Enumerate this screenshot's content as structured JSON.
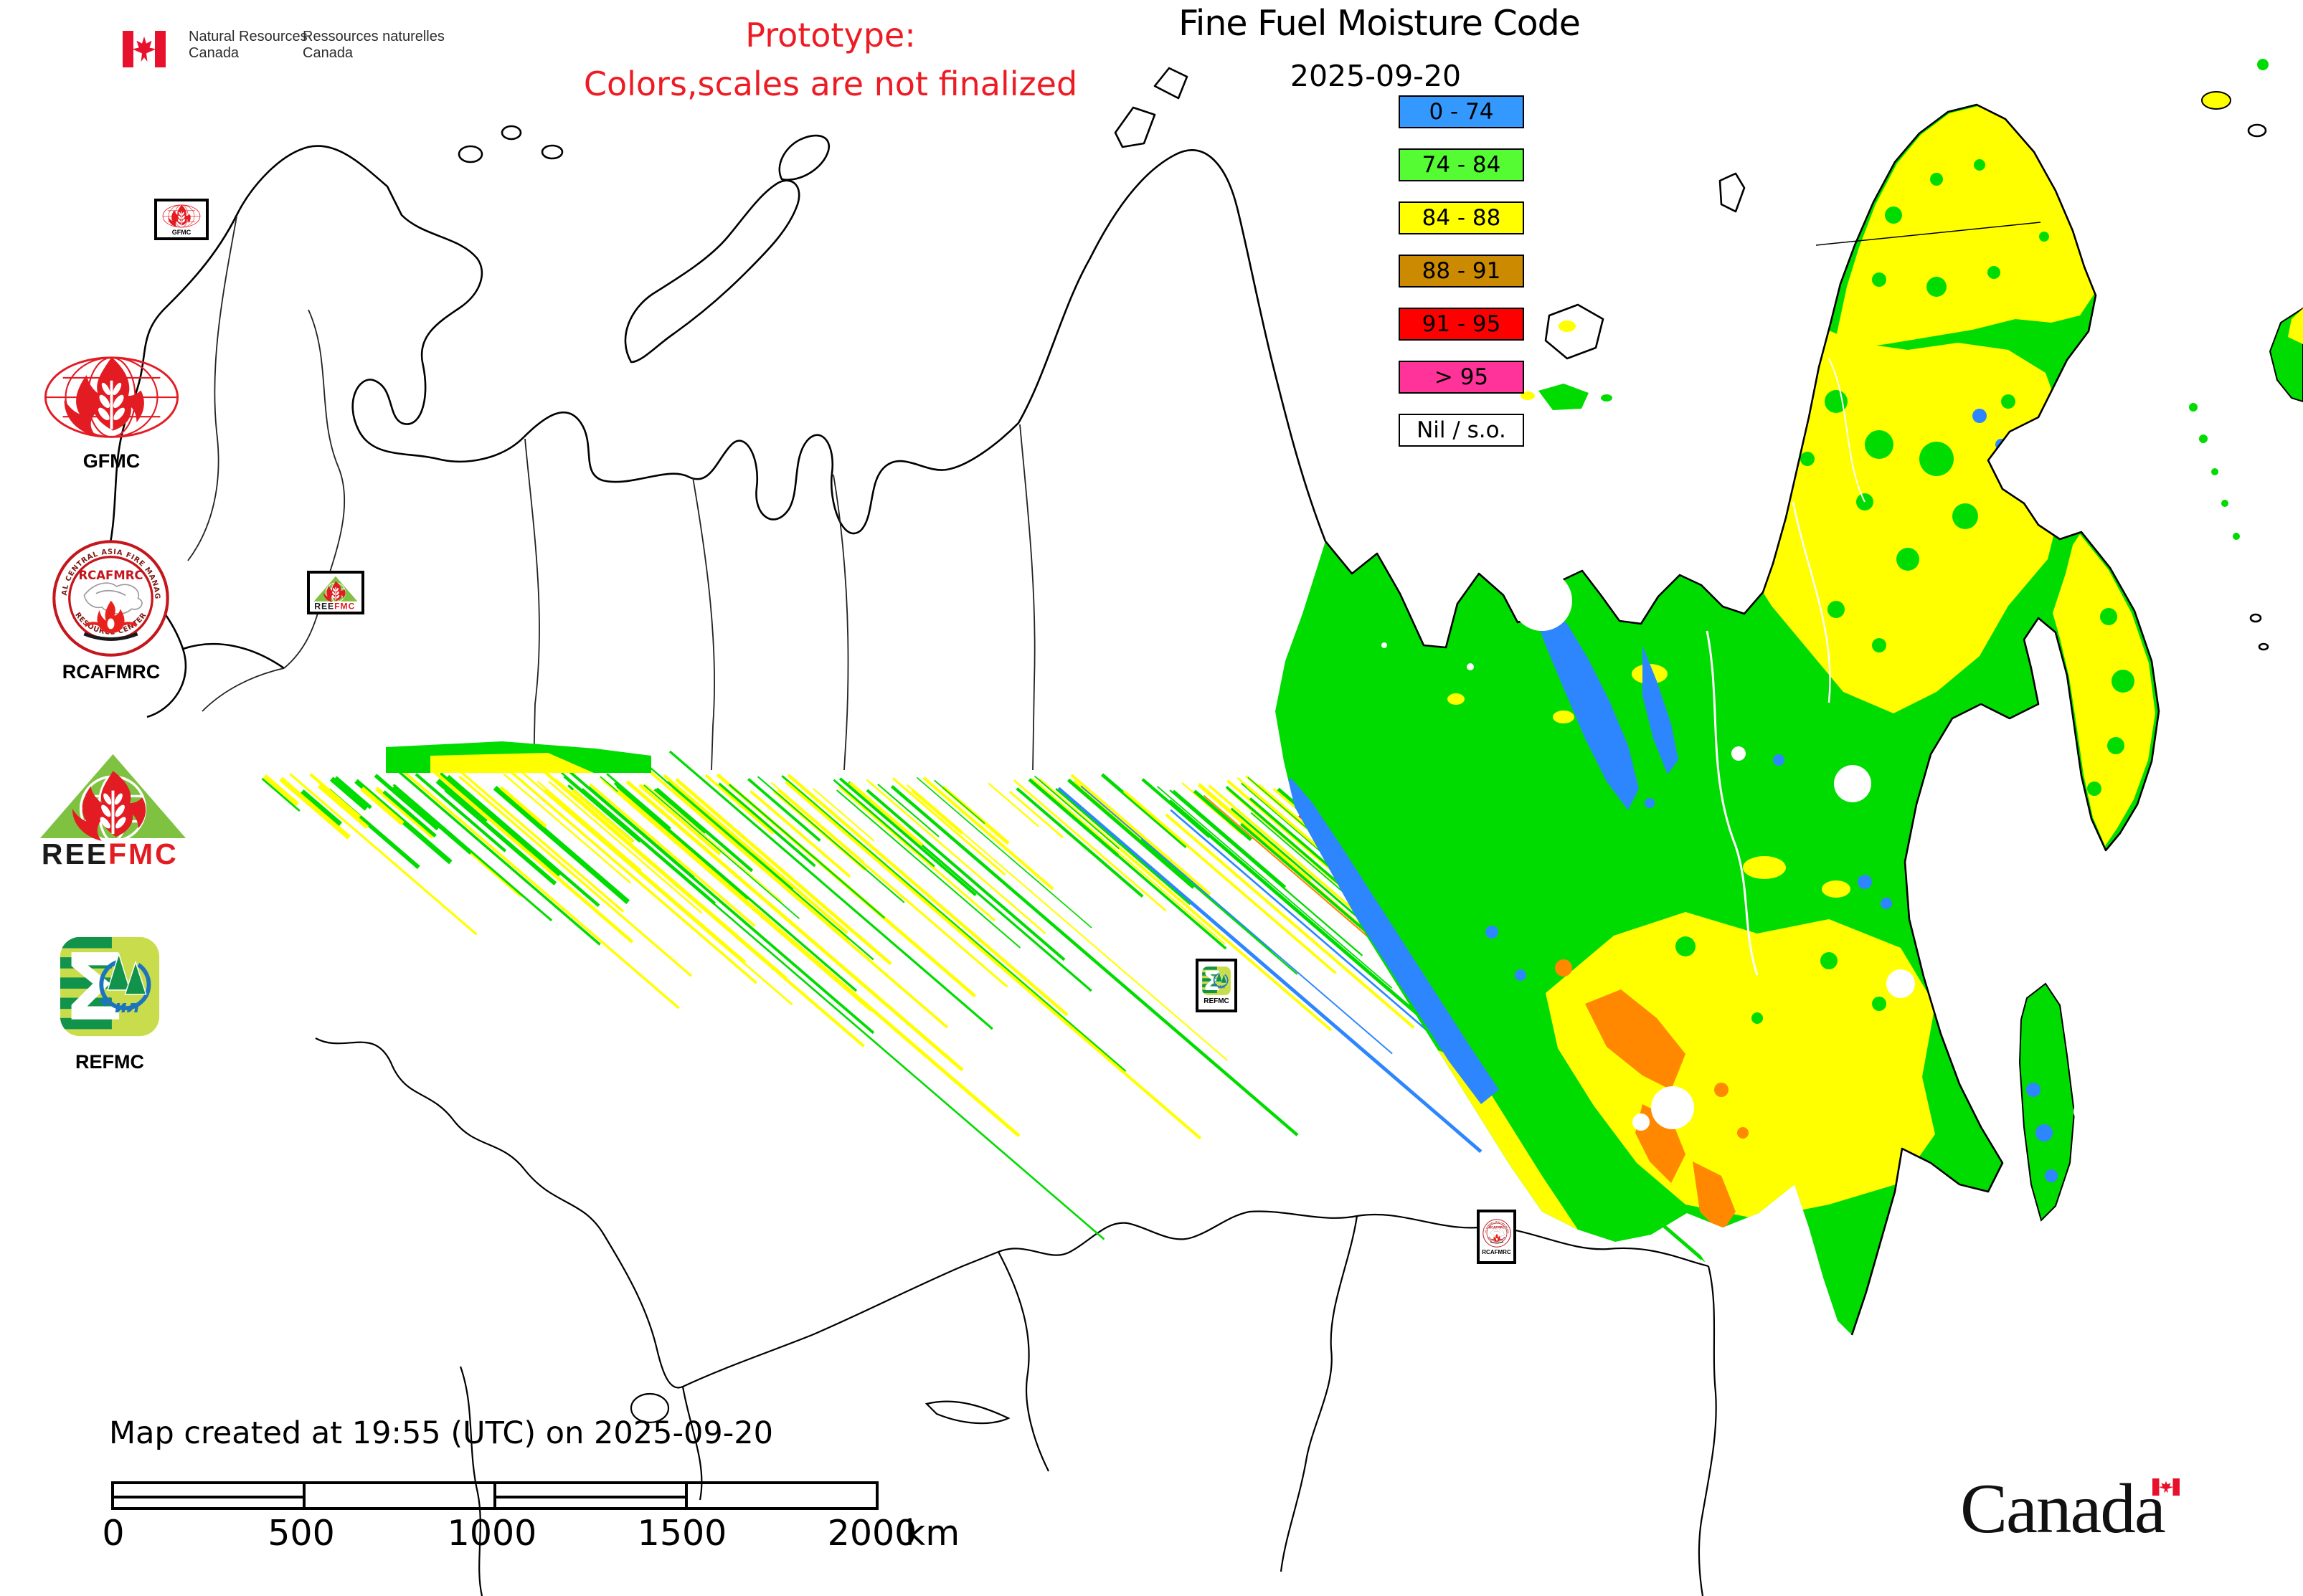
{
  "signature": {
    "en_line1": "Natural Resources",
    "en_line2": "Canada",
    "fr_line1": "Ressources naturelles",
    "fr_line2": "Canada"
  },
  "prototype": {
    "line1": "Prototype:",
    "line2": "Colors,scales are not finalized"
  },
  "title": "Fine Fuel Moisture Code",
  "date": "2025-09-20",
  "legend": {
    "items": [
      {
        "label": "0 - 74",
        "color": "#3399FF"
      },
      {
        "label": "74 - 84",
        "color": "#55FB33"
      },
      {
        "label": "84 - 88",
        "color": "#FFFF00"
      },
      {
        "label": "88 - 91",
        "color": "#CC8A00"
      },
      {
        "label": "91 - 95",
        "color": "#FF0000"
      },
      {
        "label": "> 95",
        "color": "#FF3399"
      },
      {
        "label": "Nil / s.o.",
        "color": "#FFFFFF"
      }
    ]
  },
  "logos": {
    "gfmc": {
      "label": "GFMC"
    },
    "rcafmrc": {
      "label": "RCAFMRC",
      "inner_label": "RCAFMRC",
      "ring_top": "REGIONAL CENTRAL ASIA FIRE MANAGEMENT",
      "ring_bottom": "RESOURCE CENTER"
    },
    "reefmc": {
      "label_black": "REE",
      "label_red": "FMC"
    },
    "refmc": {
      "label": "REFMC",
      "inner_label": "ил"
    }
  },
  "map": {
    "markers": {
      "gfmc": "GFMC",
      "refmc": "REFMC",
      "rcafmrc": "RCAFMRC"
    }
  },
  "footer": {
    "created": "Map created at 19:55 (UTC) on 2025-09-20",
    "scale_ticks": [
      "0",
      "500",
      "1000",
      "1500",
      "2000"
    ],
    "scale_unit": "km",
    "wordmark": "Canada"
  },
  "colors": {
    "map_green": "#00DC00",
    "map_yellow": "#FFFF00",
    "map_blue": "#2E86FF",
    "map_orange": "#FF8800",
    "map_red": "#FF2020",
    "coast": "#000000",
    "logo_red": "#E31B23",
    "logo_tri_green": "#7FC241",
    "logo_sq_green": "#C9DC4B",
    "logo_dark_green": "#11934B",
    "logo_blue": "#1C75BC"
  }
}
